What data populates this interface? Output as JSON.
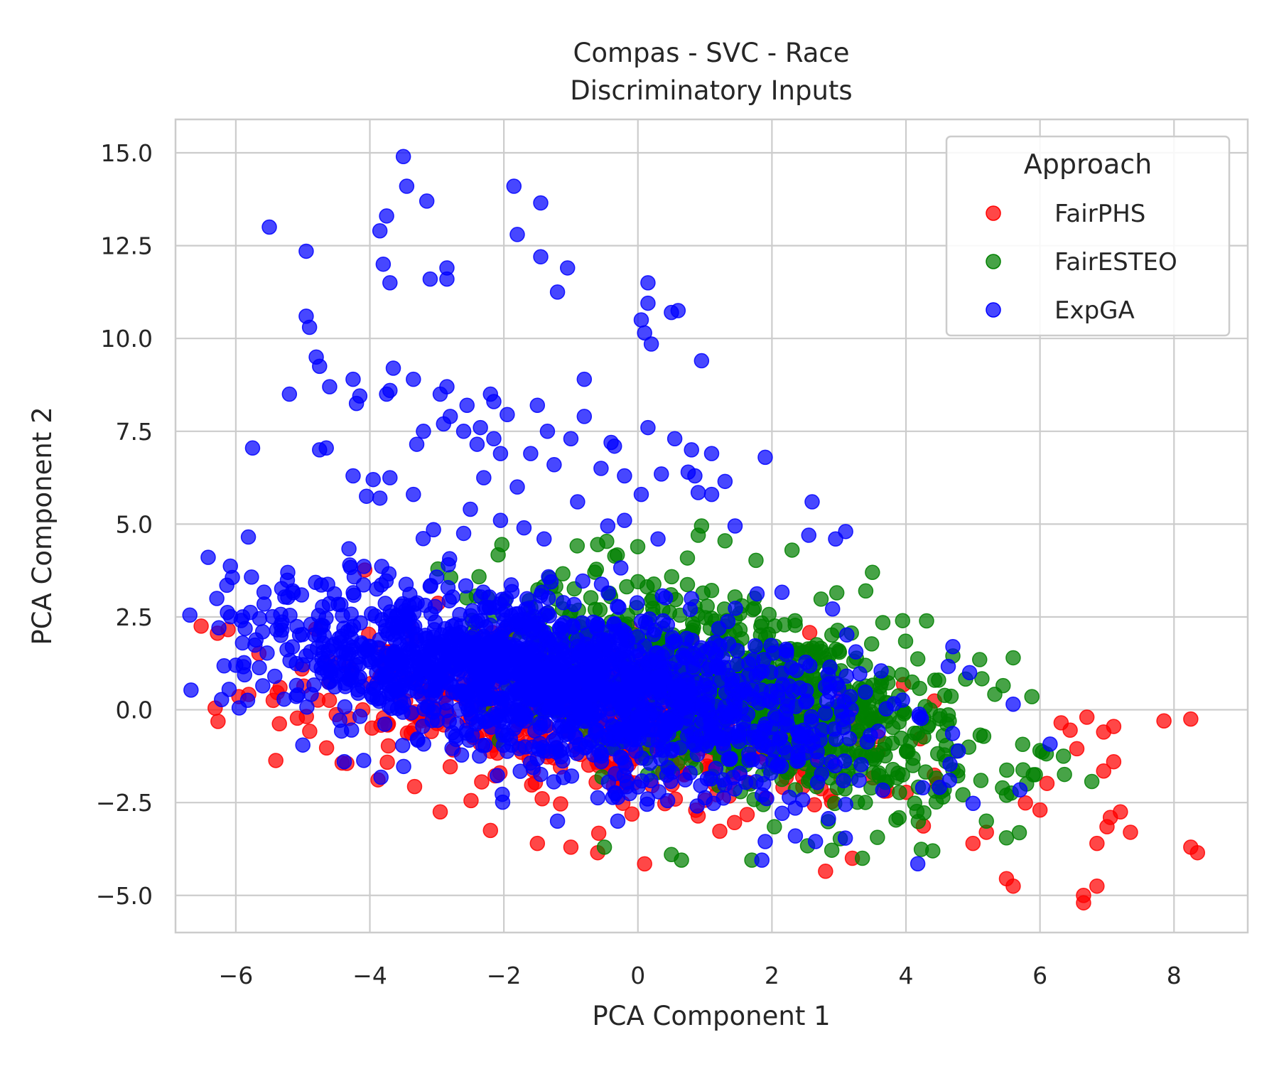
{
  "chart_data": {
    "type": "scatter",
    "title": "Compas - SVC - Race",
    "subtitle": "Discriminatory Inputs",
    "xlabel": "PCA Component 1",
    "ylabel": "PCA Component 2",
    "xlim": [
      -6.9,
      9.1
    ],
    "ylim": [
      -6.0,
      15.9
    ],
    "xticks": [
      -6,
      -4,
      -2,
      0,
      2,
      4,
      6,
      8
    ],
    "xtick_labels": [
      "−6",
      "−4",
      "−2",
      "0",
      "2",
      "4",
      "6",
      "8"
    ],
    "yticks": [
      -5.0,
      -2.5,
      0.0,
      2.5,
      5.0,
      7.5,
      10.0,
      12.5,
      15.0
    ],
    "ytick_labels": [
      "−5.0",
      "−2.5",
      "0.0",
      "2.5",
      "5.0",
      "7.5",
      "10.0",
      "12.5",
      "15.0"
    ],
    "grid": true,
    "legend_position": "top-right",
    "legend_title": "Approach",
    "series": [
      {
        "name": "FairPHS",
        "color": "#ff0000",
        "cloud": {
          "cx": -0.6,
          "cy": -0.3,
          "sx": 2.3,
          "sy": 1.1,
          "slope": -0.22,
          "n": 520
        },
        "points": [
          [
            6.7,
            -0.2
          ],
          [
            6.95,
            -0.6
          ],
          [
            7.1,
            -0.45
          ],
          [
            6.45,
            -0.55
          ],
          [
            6.55,
            -1.05
          ],
          [
            7.1,
            -1.4
          ],
          [
            6.95,
            -1.65
          ],
          [
            7.85,
            -0.3
          ],
          [
            8.25,
            -0.25
          ],
          [
            6.0,
            -2.7
          ],
          [
            7.05,
            -2.9
          ],
          [
            7.2,
            -2.75
          ],
          [
            7.0,
            -3.15
          ],
          [
            7.35,
            -3.3
          ],
          [
            6.85,
            -3.6
          ],
          [
            8.25,
            -3.7
          ],
          [
            8.35,
            -3.85
          ],
          [
            5.5,
            -4.55
          ],
          [
            5.6,
            -4.75
          ],
          [
            6.85,
            -4.75
          ],
          [
            6.65,
            -5.0
          ],
          [
            6.65,
            -5.2
          ],
          [
            0.1,
            -4.15
          ],
          [
            2.8,
            -4.35
          ],
          [
            -2.95,
            -2.75
          ],
          [
            -2.2,
            -3.25
          ],
          [
            -1.5,
            -3.6
          ],
          [
            -1.0,
            -3.7
          ],
          [
            5.2,
            -3.3
          ],
          [
            5.0,
            -3.6
          ],
          [
            3.2,
            -4.0
          ],
          [
            -0.6,
            -3.85
          ]
        ]
      },
      {
        "name": "FairESTEO",
        "color": "#008000",
        "cloud": {
          "cx": 1.6,
          "cy": 0.5,
          "sx": 1.8,
          "sy": 1.25,
          "slope": -0.45,
          "n": 900
        },
        "points": [
          [
            0.95,
            4.95
          ],
          [
            0.9,
            4.7
          ],
          [
            1.3,
            4.55
          ],
          [
            2.3,
            4.3
          ],
          [
            -0.6,
            4.45
          ],
          [
            3.5,
            3.7
          ],
          [
            3.4,
            3.2
          ],
          [
            3.95,
            2.4
          ],
          [
            4.7,
            1.45
          ],
          [
            5.1,
            1.35
          ],
          [
            5.6,
            1.4
          ],
          [
            5.45,
            0.65
          ],
          [
            6.0,
            -1.1
          ],
          [
            6.35,
            -1.25
          ],
          [
            5.9,
            -1.75
          ],
          [
            5.8,
            -2.0
          ],
          [
            5.5,
            -2.3
          ],
          [
            5.2,
            -3.0
          ],
          [
            5.5,
            -3.45
          ],
          [
            4.4,
            -3.8
          ],
          [
            3.35,
            -4.0
          ],
          [
            1.7,
            -4.05
          ],
          [
            0.5,
            -3.9
          ],
          [
            0.65,
            -4.05
          ],
          [
            -0.5,
            -3.7
          ]
        ]
      },
      {
        "name": "ExpGA",
        "color": "#0000ff",
        "cloud": {
          "cx": -1.2,
          "cy": 0.75,
          "sx": 2.25,
          "sy": 1.1,
          "slope": -0.28,
          "n": 1600
        },
        "points": [
          [
            -3.5,
            14.9
          ],
          [
            -3.45,
            14.1
          ],
          [
            -1.85,
            14.1
          ],
          [
            -1.45,
            13.65
          ],
          [
            -3.15,
            13.7
          ],
          [
            -5.5,
            13.0
          ],
          [
            -3.75,
            13.3
          ],
          [
            -3.85,
            12.9
          ],
          [
            -1.8,
            12.8
          ],
          [
            -4.95,
            12.35
          ],
          [
            -1.45,
            12.2
          ],
          [
            -3.8,
            12.0
          ],
          [
            -2.85,
            11.9
          ],
          [
            -1.05,
            11.9
          ],
          [
            -3.7,
            11.5
          ],
          [
            -3.1,
            11.6
          ],
          [
            -2.85,
            11.6
          ],
          [
            -1.2,
            11.25
          ],
          [
            0.15,
            11.5
          ],
          [
            0.15,
            10.95
          ],
          [
            0.6,
            10.75
          ],
          [
            0.5,
            10.7
          ],
          [
            0.05,
            10.5
          ],
          [
            0.1,
            10.15
          ],
          [
            0.2,
            9.85
          ],
          [
            -4.95,
            10.6
          ],
          [
            -4.9,
            10.3
          ],
          [
            0.95,
            9.4
          ],
          [
            -4.8,
            9.5
          ],
          [
            -4.75,
            9.25
          ],
          [
            -3.65,
            9.2
          ],
          [
            -3.35,
            8.9
          ],
          [
            -4.25,
            8.9
          ],
          [
            -4.6,
            8.7
          ],
          [
            -5.2,
            8.5
          ],
          [
            -3.7,
            8.6
          ],
          [
            -3.75,
            8.5
          ],
          [
            -4.15,
            8.45
          ],
          [
            -4.2,
            8.25
          ],
          [
            -2.85,
            8.7
          ],
          [
            -2.95,
            8.5
          ],
          [
            -0.8,
            8.9
          ],
          [
            -2.2,
            8.5
          ],
          [
            -2.15,
            8.3
          ],
          [
            -1.5,
            8.2
          ],
          [
            -2.55,
            8.2
          ],
          [
            -2.8,
            7.9
          ],
          [
            -2.9,
            7.7
          ],
          [
            -2.6,
            7.5
          ],
          [
            -1.95,
            7.95
          ],
          [
            -2.35,
            7.6
          ],
          [
            -2.15,
            7.3
          ],
          [
            -1.35,
            7.5
          ],
          [
            -0.8,
            7.9
          ],
          [
            -1.0,
            7.3
          ],
          [
            0.15,
            7.6
          ],
          [
            -4.65,
            7.05
          ],
          [
            -4.75,
            7.0
          ],
          [
            -5.75,
            7.05
          ],
          [
            -3.3,
            7.15
          ],
          [
            -3.2,
            7.5
          ],
          [
            -2.4,
            7.15
          ],
          [
            -0.4,
            7.2
          ],
          [
            -0.35,
            7.1
          ],
          [
            0.55,
            7.3
          ],
          [
            0.8,
            7.0
          ],
          [
            1.1,
            6.9
          ],
          [
            1.9,
            6.8
          ],
          [
            -2.05,
            6.9
          ],
          [
            -1.6,
            6.9
          ],
          [
            -1.25,
            6.6
          ],
          [
            -0.55,
            6.5
          ],
          [
            0.35,
            6.35
          ],
          [
            0.75,
            6.4
          ],
          [
            0.85,
            6.3
          ],
          [
            1.3,
            6.15
          ],
          [
            -1.8,
            6.0
          ],
          [
            -2.3,
            6.25
          ],
          [
            -4.25,
            6.3
          ],
          [
            -3.95,
            6.2
          ],
          [
            -3.7,
            6.25
          ],
          [
            -0.2,
            6.3
          ],
          [
            -4.05,
            5.75
          ],
          [
            -3.85,
            5.7
          ],
          [
            -3.35,
            5.8
          ],
          [
            0.05,
            5.8
          ],
          [
            0.9,
            5.85
          ],
          [
            1.1,
            5.8
          ],
          [
            2.6,
            5.6
          ],
          [
            -0.9,
            5.6
          ],
          [
            -2.5,
            5.4
          ],
          [
            -2.05,
            5.1
          ],
          [
            -0.2,
            5.1
          ],
          [
            -0.45,
            4.95
          ],
          [
            -1.7,
            4.9
          ],
          [
            -3.05,
            4.85
          ],
          [
            -2.6,
            4.75
          ],
          [
            -1.4,
            4.6
          ],
          [
            0.3,
            4.6
          ],
          [
            1.45,
            4.95
          ],
          [
            2.55,
            4.7
          ],
          [
            3.1,
            4.8
          ],
          [
            2.95,
            4.6
          ],
          [
            -5.15,
            3.2
          ],
          [
            -4.3,
            3.9
          ],
          [
            -5.6,
            2.1
          ],
          [
            -5.9,
            1.8
          ],
          [
            -6.0,
            1.2
          ],
          [
            -6.1,
            0.55
          ],
          [
            -5.95,
            0.05
          ],
          [
            -5.0,
            -0.95
          ],
          [
            4.7,
            1.7
          ],
          [
            4.95,
            1.0
          ],
          [
            5.6,
            0.15
          ],
          [
            3.1,
            -2.55
          ],
          [
            3.3,
            -1.9
          ],
          [
            4.65,
            -1.9
          ],
          [
            4.25,
            -2.1
          ],
          [
            1.9,
            -3.55
          ],
          [
            2.35,
            -3.4
          ],
          [
            1.85,
            -4.05
          ],
          [
            2.65,
            -3.55
          ],
          [
            -1.2,
            -3.0
          ],
          [
            -0.3,
            -3.0
          ]
        ]
      }
    ]
  }
}
